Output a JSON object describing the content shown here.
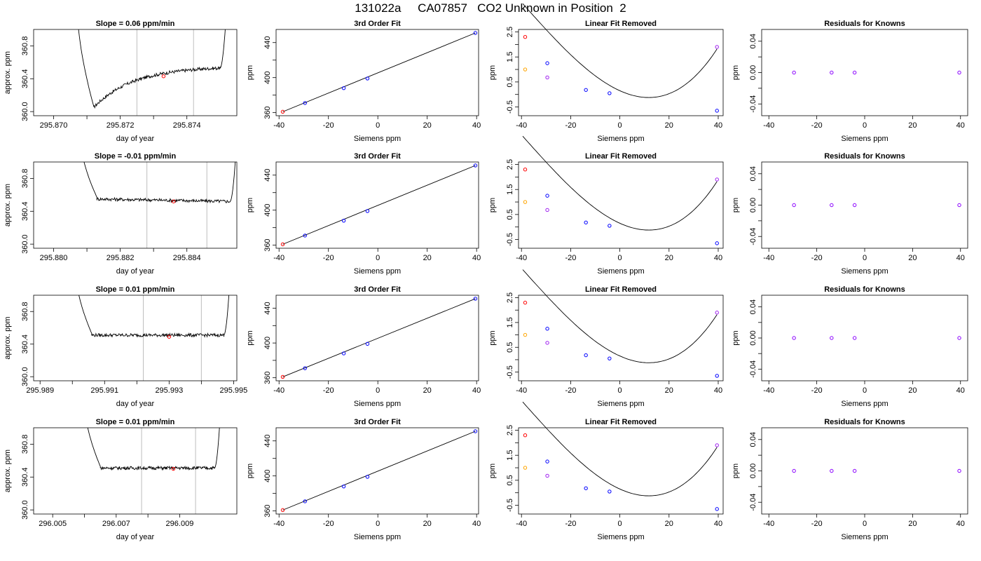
{
  "title": "131022a     CA07857   CO2 Unknown in Position  2",
  "colors": {
    "red": "#ff0000",
    "blue": "#0000ff",
    "orange": "#ffa500",
    "purple": "#a020f0",
    "violet": "#8a00ff",
    "gray": "#bebebe",
    "black": "#000000"
  },
  "panel_titles": {
    "fit": "3rd Order Fit",
    "removed": "Linear Fit Removed",
    "resid": "Residuals for Knowns"
  },
  "axis_labels": {
    "trace_y": "approx. ppm",
    "trace_x": "day of year",
    "fit_y": "ppm",
    "fit_x": "Siemens ppm"
  },
  "chart_data": {
    "type": "line",
    "shared": {
      "fit": {
        "xlim": [
          -40,
          40
        ],
        "ylim": [
          360,
          452
        ],
        "xticks": [
          -40,
          -20,
          0,
          20,
          40
        ],
        "yticks": [
          360,
          400,
          440
        ],
        "line": [
          [
            -38.5,
            361
          ],
          [
            39.5,
            451
          ]
        ],
        "red_points": [
          [
            -38.5,
            361
          ]
        ],
        "blue_points": [
          [
            -29.5,
            371
          ],
          [
            -13.8,
            388
          ],
          [
            -4.2,
            399
          ],
          [
            39.5,
            451
          ]
        ]
      },
      "removed": {
        "xlim": [
          -40,
          40
        ],
        "ylim": [
          -0.85,
          2.6
        ],
        "xticks": [
          -40,
          -20,
          0,
          20,
          40
        ],
        "yticks": [
          -0.5,
          0.5,
          1.5,
          2.5
        ],
        "curve_coeffs": [
          0.15,
          -0.0445,
          0.00165,
          1.38e-05
        ],
        "curve_range": [
          -39.5,
          39.5
        ],
        "red_points": [
          [
            -38.5,
            2.3
          ]
        ],
        "blue_points": [
          [
            -29.5,
            1.25
          ],
          [
            -13.8,
            0.18
          ],
          [
            -4.2,
            0.05
          ],
          [
            39.5,
            -0.65
          ]
        ],
        "orange_points": [
          [
            -38.5,
            1.0
          ]
        ],
        "purple_points": [
          [
            -29.5,
            0.68
          ],
          [
            39.5,
            1.9
          ]
        ]
      },
      "resid": {
        "xlim": [
          -40,
          40
        ],
        "ylim": [
          -0.055,
          0.055
        ],
        "xticks": [
          -40,
          -20,
          0,
          20,
          40
        ],
        "yticks": [
          -0.04,
          0.0,
          0.04
        ],
        "points": [
          [
            -29.5,
            0
          ],
          [
            -13.8,
            0
          ],
          [
            -4.2,
            0
          ],
          [
            39.5,
            0
          ]
        ]
      }
    },
    "rows": [
      {
        "slope_label": "Slope =  0.06  ppm/min",
        "trace": {
          "xlim": [
            295.8694,
            295.8755
          ],
          "ylim": [
            359.95,
            361.0
          ],
          "xticks": [
            295.87,
            295.872,
            295.874
          ],
          "xtick_labels": [
            "295.870",
            "295.872",
            "295.874"
          ],
          "yticks": [
            360.0,
            360.4,
            360.8
          ],
          "ytick_labels": [
            "360.0",
            "360.4",
            "360.8"
          ],
          "vlines": [
            295.8725,
            295.8742
          ],
          "start": 295.8707,
          "rise_end": 295.8712,
          "flat_start": 295.8712,
          "flat_end": 295.875,
          "end": 295.8752,
          "flat_from": 360.05,
          "flat_to": 360.53,
          "flat_shape": "rise",
          "red_points": [
            [
              295.8733,
              360.43
            ]
          ]
        }
      },
      {
        "slope_label": "Slope =  -0.01  ppm/min",
        "trace": {
          "xlim": [
            295.8794,
            295.8855
          ],
          "ylim": [
            359.95,
            361.0
          ],
          "xticks": [
            295.88,
            295.882,
            295.884
          ],
          "xtick_labels": [
            "295.880",
            "295.882",
            "295.884"
          ],
          "yticks": [
            360.0,
            360.4,
            360.8
          ],
          "ytick_labels": [
            "360.0",
            "360.4",
            "360.8"
          ],
          "vlines": [
            295.8828,
            295.8846
          ],
          "start": 295.8808,
          "rise_end": 295.8813,
          "flat_start": 295.8813,
          "flat_end": 295.8853,
          "end": 295.8855,
          "flat_from": 360.55,
          "flat_to": 360.52,
          "flat_shape": "flat",
          "red_points": [
            [
              295.8836,
              360.52
            ]
          ]
        }
      },
      {
        "slope_label": "Slope =  0.01  ppm/min",
        "trace": {
          "xlim": [
            295.9888,
            295.9951
          ],
          "ylim": [
            359.95,
            361.0
          ],
          "xticks": [
            295.989,
            295.991,
            295.993,
            295.995
          ],
          "xtick_labels": [
            "295.989",
            "295.991",
            "295.993",
            "295.995"
          ],
          "yticks": [
            360.0,
            360.4,
            360.8
          ],
          "ytick_labels": [
            "360.0",
            "360.4",
            "360.8"
          ],
          "vlines": [
            295.9922,
            295.994
          ],
          "start": 295.9901,
          "rise_end": 295.9906,
          "flat_start": 295.9906,
          "flat_end": 295.9947,
          "end": 295.9949,
          "flat_from": 360.51,
          "flat_to": 360.51,
          "flat_shape": "flat",
          "red_points": [
            [
              295.993,
              360.49
            ]
          ]
        }
      },
      {
        "slope_label": "Slope =  0.01  ppm/min",
        "trace": {
          "xlim": [
            296.0044,
            296.0108
          ],
          "ylim": [
            359.95,
            361.0
          ],
          "xticks": [
            296.005,
            296.007,
            296.009
          ],
          "xtick_labels": [
            "296.005",
            "296.007",
            "296.009"
          ],
          "yticks": [
            360.0,
            360.4,
            360.8
          ],
          "ytick_labels": [
            "360.0",
            "360.4",
            "360.8"
          ],
          "vlines": [
            296.0078,
            296.0095
          ],
          "start": 296.006,
          "rise_end": 296.0065,
          "flat_start": 296.0065,
          "flat_end": 296.0101,
          "end": 296.0103,
          "flat_from": 360.51,
          "flat_to": 360.51,
          "flat_shape": "flat",
          "red_points": [
            [
              296.0088,
              360.5
            ]
          ]
        }
      }
    ]
  }
}
